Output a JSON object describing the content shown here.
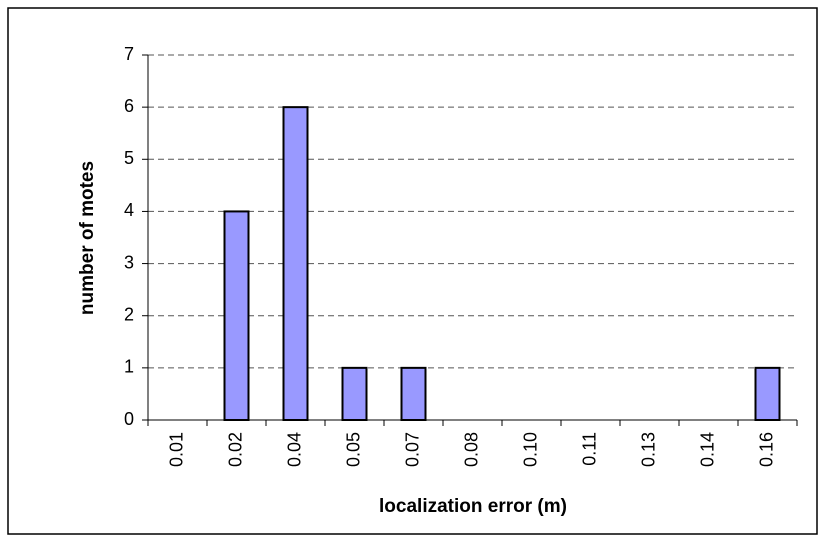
{
  "chart_data": {
    "type": "bar",
    "x_label": "localization error (m)",
    "y_label": "number of motes",
    "categories": [
      "0.01",
      "0.02",
      "0.04",
      "0.05",
      "0.07",
      "0.08",
      "0.10",
      "0.11",
      "0.13",
      "0.14",
      "0.16"
    ],
    "values": [
      0,
      4,
      6,
      1,
      1,
      0,
      0,
      0,
      0,
      0,
      1
    ],
    "color": "#9999ff",
    "ylim": [
      0,
      7
    ],
    "yticks": [
      0,
      1,
      2,
      3,
      4,
      5,
      6,
      7
    ],
    "grid": true
  }
}
